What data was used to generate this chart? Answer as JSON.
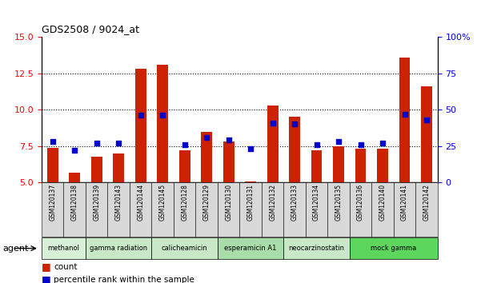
{
  "title": "GDS2508 / 9024_at",
  "samples": [
    "GSM120137",
    "GSM120138",
    "GSM120139",
    "GSM120143",
    "GSM120144",
    "GSM120145",
    "GSM120128",
    "GSM120129",
    "GSM120130",
    "GSM120131",
    "GSM120132",
    "GSM120133",
    "GSM120134",
    "GSM120135",
    "GSM120136",
    "GSM120140",
    "GSM120141",
    "GSM120142"
  ],
  "counts": [
    7.4,
    5.7,
    6.8,
    7.0,
    12.8,
    13.1,
    7.2,
    8.5,
    7.8,
    5.1,
    10.3,
    9.5,
    7.2,
    7.5,
    7.3,
    7.3,
    13.6,
    11.6
  ],
  "percentiles": [
    28,
    22,
    27,
    27,
    46,
    46,
    26,
    31,
    29,
    23,
    41,
    40,
    26,
    28,
    26,
    27,
    47,
    43
  ],
  "bar_color": "#cc2200",
  "dot_color": "#0000cc",
  "ylim_left": [
    5,
    15
  ],
  "ylim_right": [
    0,
    100
  ],
  "yticks_left": [
    5,
    7.5,
    10,
    12.5,
    15
  ],
  "yticks_right": [
    0,
    25,
    50,
    75,
    100
  ],
  "hlines": [
    7.5,
    10.0,
    12.5
  ],
  "legend_count_label": "count",
  "legend_pct_label": "percentile rank within the sample",
  "bar_bottom": 5,
  "group_boundaries": [
    {
      "label": "methanol",
      "start": 0,
      "end": 1,
      "color": "#d8f0d8"
    },
    {
      "label": "gamma radiation",
      "start": 2,
      "end": 4,
      "color": "#c8e8c8"
    },
    {
      "label": "calicheamicin",
      "start": 5,
      "end": 7,
      "color": "#c8e8c8"
    },
    {
      "label": "esperamicin A1",
      "start": 8,
      "end": 10,
      "color": "#a8dca8"
    },
    {
      "label": "neocarzinostatin",
      "start": 11,
      "end": 13,
      "color": "#c8e8c8"
    },
    {
      "label": "mock gamma",
      "start": 14,
      "end": 17,
      "color": "#5cd65c"
    }
  ]
}
